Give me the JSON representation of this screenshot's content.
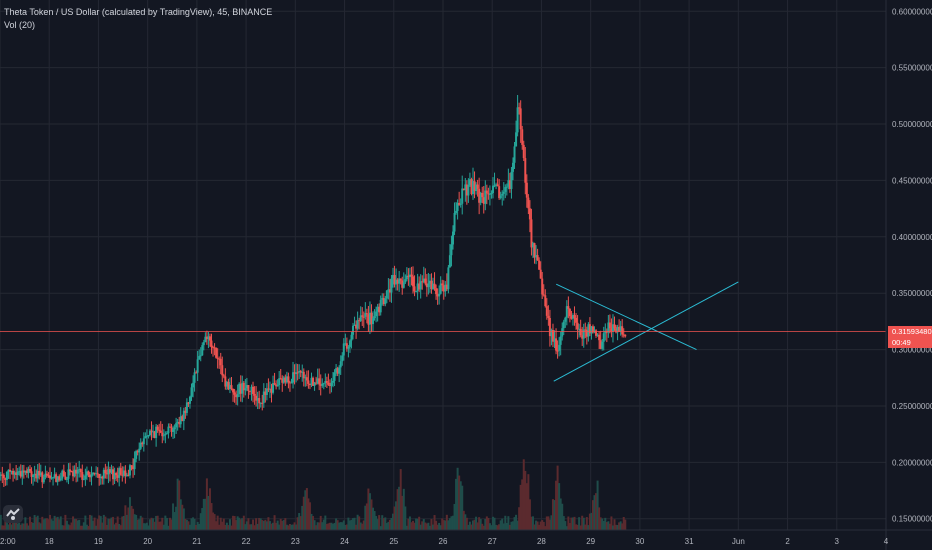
{
  "legend": {
    "title": "Theta Token / US Dollar (calculated by TradingView), 45, BINANCE",
    "indicator": "Vol (20)"
  },
  "colors": {
    "background": "#131722",
    "grid": "#242833",
    "up": "#26a69a",
    "down": "#ef5350",
    "vol_up": "#1f4d4a",
    "vol_down": "#5b2a2e",
    "trendline": "#2bbcd4",
    "price_line": "#ef5350"
  },
  "price_tag": {
    "value": "0.31593480",
    "countdown": "00:49"
  },
  "chart_data": {
    "type": "candlestick",
    "y_axis": {
      "position": "right",
      "range": [
        0.14,
        0.61
      ],
      "ticks": [
        "0.15000000",
        "0.20000000",
        "0.25000000",
        "0.30000000",
        "0.35000000",
        "0.40000000",
        "0.45000000",
        "0.50000000",
        "0.55000000",
        "0.60000000"
      ],
      "tick_values": [
        0.15,
        0.2,
        0.25,
        0.3,
        0.35,
        0.4,
        0.45,
        0.5,
        0.55,
        0.6
      ]
    },
    "x_axis": {
      "range": [
        17,
        35
      ],
      "ticks": [
        "2:00",
        "18",
        "19",
        "20",
        "21",
        "22",
        "23",
        "24",
        "25",
        "26",
        "27",
        "28",
        "29",
        "30",
        "31",
        "Jun",
        "2",
        "3",
        "4"
      ],
      "tick_values": [
        17,
        18,
        19,
        20,
        21,
        22,
        23,
        24,
        25,
        26,
        27,
        28,
        29,
        30,
        31,
        32,
        33,
        34,
        35
      ]
    },
    "current_price": 0.3159348,
    "price_path": [
      [
        17.0,
        0.188
      ],
      [
        17.5,
        0.192
      ],
      [
        18.0,
        0.185
      ],
      [
        18.5,
        0.19
      ],
      [
        19.0,
        0.188
      ],
      [
        19.4,
        0.19
      ],
      [
        19.7,
        0.194
      ],
      [
        19.8,
        0.21
      ],
      [
        20.0,
        0.225
      ],
      [
        20.3,
        0.228
      ],
      [
        20.6,
        0.232
      ],
      [
        20.8,
        0.248
      ],
      [
        21.0,
        0.285
      ],
      [
        21.2,
        0.315
      ],
      [
        21.4,
        0.295
      ],
      [
        21.6,
        0.27
      ],
      [
        21.8,
        0.262
      ],
      [
        22.0,
        0.27
      ],
      [
        22.3,
        0.255
      ],
      [
        22.6,
        0.268
      ],
      [
        23.0,
        0.278
      ],
      [
        23.3,
        0.272
      ],
      [
        23.6,
        0.268
      ],
      [
        23.9,
        0.28
      ],
      [
        24.0,
        0.3
      ],
      [
        24.2,
        0.318
      ],
      [
        24.4,
        0.33
      ],
      [
        24.6,
        0.325
      ],
      [
        24.8,
        0.342
      ],
      [
        25.0,
        0.36
      ],
      [
        25.3,
        0.362
      ],
      [
        25.5,
        0.355
      ],
      [
        25.7,
        0.36
      ],
      [
        25.9,
        0.352
      ],
      [
        26.1,
        0.358
      ],
      [
        26.25,
        0.415
      ],
      [
        26.4,
        0.44
      ],
      [
        26.6,
        0.445
      ],
      [
        26.8,
        0.432
      ],
      [
        27.0,
        0.44
      ],
      [
        27.2,
        0.438
      ],
      [
        27.4,
        0.45
      ],
      [
        27.55,
        0.515
      ],
      [
        27.65,
        0.47
      ],
      [
        27.8,
        0.4
      ],
      [
        28.0,
        0.36
      ],
      [
        28.2,
        0.315
      ],
      [
        28.35,
        0.3
      ],
      [
        28.55,
        0.338
      ],
      [
        28.8,
        0.315
      ],
      [
        29.0,
        0.318
      ],
      [
        29.2,
        0.305
      ],
      [
        29.4,
        0.322
      ],
      [
        29.6,
        0.318
      ],
      [
        29.7,
        0.316
      ]
    ],
    "volume": {
      "range_height_fraction": 0.18,
      "spikes": [
        [
          19.6,
          0.35
        ],
        [
          20.6,
          0.5
        ],
        [
          21.2,
          0.6
        ],
        [
          23.2,
          0.45
        ],
        [
          24.5,
          0.5
        ],
        [
          25.1,
          0.7
        ],
        [
          26.3,
          0.75
        ],
        [
          27.65,
          1.0
        ],
        [
          28.3,
          0.6
        ],
        [
          29.1,
          0.45
        ]
      ]
    },
    "annotations": [
      {
        "type": "trendline",
        "points": [
          [
            28.3,
            0.358
          ],
          [
            31.15,
            0.3
          ]
        ]
      },
      {
        "type": "trendline",
        "points": [
          [
            28.25,
            0.272
          ],
          [
            32.0,
            0.36
          ]
        ]
      }
    ]
  }
}
